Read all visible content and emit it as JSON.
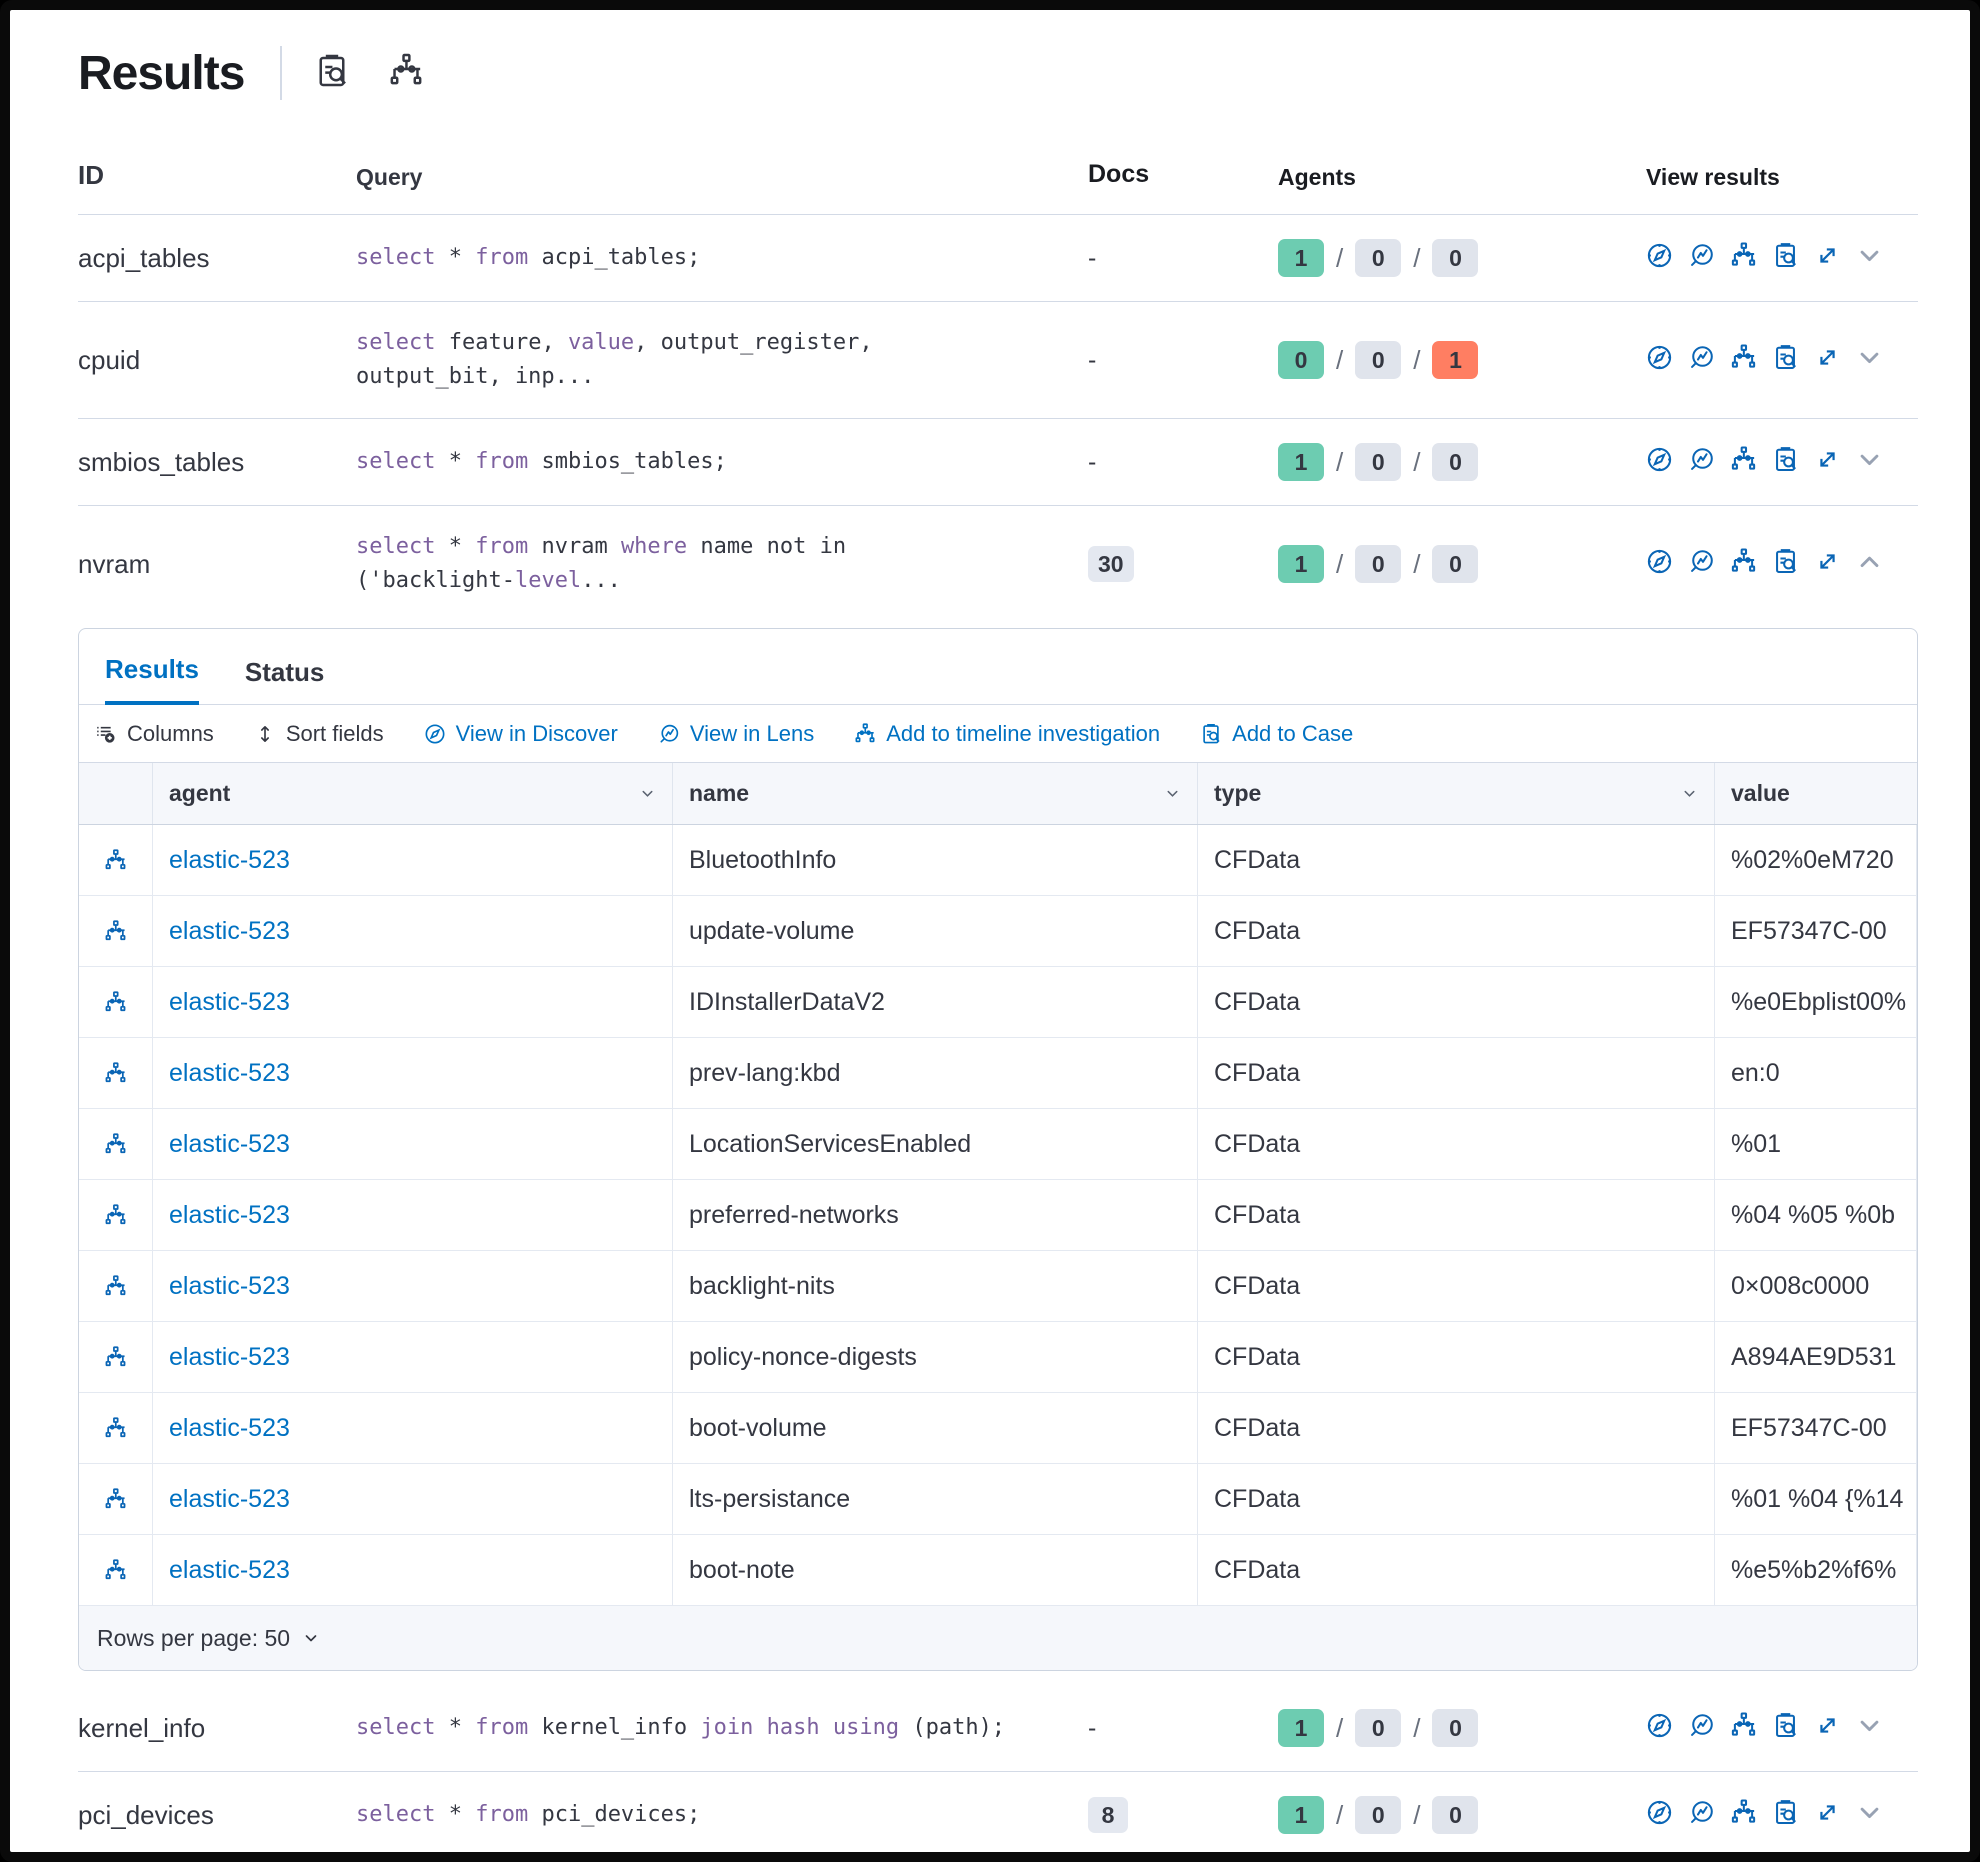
{
  "page": {
    "title": "Results"
  },
  "colors": {
    "link_blue": "#0071c2",
    "icon_blue": "#0a65b5",
    "keyword_purple": "#7c609e",
    "badge_green": "#6dccb1",
    "badge_gray": "#e0e4ec",
    "badge_red": "#ff7e62",
    "text": "#343741"
  },
  "results_table": {
    "headers": {
      "id": "ID",
      "query": "Query",
      "docs": "Docs",
      "agents": "Agents",
      "view_results": "View results"
    },
    "rows": [
      {
        "id": "acpi_tables",
        "query": [
          [
            {
              "t": "select",
              "k": 1
            },
            {
              "t": " * "
            },
            {
              "t": "from",
              "k": 1
            },
            {
              "t": " acpi_tables;"
            }
          ]
        ],
        "docs": "-",
        "docs_is_badge": false,
        "agents": [
          "1",
          "0",
          "0"
        ],
        "third_alert": false,
        "expanded": false
      },
      {
        "id": "cpuid",
        "query": [
          [
            {
              "t": "select",
              "k": 1
            },
            {
              "t": " feature, "
            },
            {
              "t": "value",
              "k": 1
            },
            {
              "t": ", output_register,"
            }
          ],
          [
            {
              "t": "output_bit, inp..."
            }
          ]
        ],
        "docs": "-",
        "docs_is_badge": false,
        "agents": [
          "0",
          "0",
          "1"
        ],
        "third_alert": true,
        "expanded": false
      },
      {
        "id": "smbios_tables",
        "query": [
          [
            {
              "t": "select",
              "k": 1
            },
            {
              "t": " * "
            },
            {
              "t": "from",
              "k": 1
            },
            {
              "t": " smbios_tables;"
            }
          ]
        ],
        "docs": "-",
        "docs_is_badge": false,
        "agents": [
          "1",
          "0",
          "0"
        ],
        "third_alert": false,
        "expanded": false
      },
      {
        "id": "nvram",
        "query": [
          [
            {
              "t": "select",
              "k": 1
            },
            {
              "t": " * "
            },
            {
              "t": "from",
              "k": 1
            },
            {
              "t": " nvram "
            },
            {
              "t": "where",
              "k": 1
            },
            {
              "t": " name not in"
            }
          ],
          [
            {
              "t": "('backlight-"
            },
            {
              "t": "level",
              "k": 1
            },
            {
              "t": "..."
            }
          ]
        ],
        "docs": "30",
        "docs_is_badge": true,
        "agents": [
          "1",
          "0",
          "0"
        ],
        "third_alert": false,
        "expanded": true
      }
    ],
    "rows_after": [
      {
        "id": "kernel_info",
        "query": [
          [
            {
              "t": "select",
              "k": 1
            },
            {
              "t": " * "
            },
            {
              "t": "from",
              "k": 1
            },
            {
              "t": " kernel_info "
            },
            {
              "t": "join hash using",
              "k": 1
            },
            {
              "t": " (path);"
            }
          ]
        ],
        "docs": "-",
        "docs_is_badge": false,
        "agents": [
          "1",
          "0",
          "0"
        ],
        "third_alert": false,
        "expanded": false
      },
      {
        "id": "pci_devices",
        "query": [
          [
            {
              "t": "select",
              "k": 1
            },
            {
              "t": " * "
            },
            {
              "t": "from",
              "k": 1
            },
            {
              "t": " pci_devices;"
            }
          ]
        ],
        "docs": "8",
        "docs_is_badge": true,
        "agents": [
          "1",
          "0",
          "0"
        ],
        "third_alert": false,
        "expanded": false
      }
    ]
  },
  "panel": {
    "tabs": [
      {
        "label": "Results",
        "active": true
      },
      {
        "label": "Status",
        "active": false
      }
    ],
    "toolbar": [
      {
        "label": "Columns"
      },
      {
        "label": "Sort fields"
      },
      {
        "label": "View in Discover"
      },
      {
        "label": "View in Lens"
      },
      {
        "label": "Add to timeline investigation"
      },
      {
        "label": "Add to Case"
      }
    ],
    "grid": {
      "columns": [
        "agent",
        "name",
        "type",
        "value"
      ],
      "rows": [
        {
          "agent": "elastic-523",
          "name": "BluetoothInfo",
          "type": "CFData",
          "value": "%02%0eM720"
        },
        {
          "agent": "elastic-523",
          "name": "update-volume",
          "type": "CFData",
          "value": "EF57347C-00"
        },
        {
          "agent": "elastic-523",
          "name": "IDInstallerDataV2",
          "type": "CFData",
          "value": "%e0Ebplist00%"
        },
        {
          "agent": "elastic-523",
          "name": "prev-lang:kbd",
          "type": "CFData",
          "value": "en:0"
        },
        {
          "agent": "elastic-523",
          "name": "LocationServicesEnabled",
          "type": "CFData",
          "value": "%01"
        },
        {
          "agent": "elastic-523",
          "name": "preferred-networks",
          "type": "CFData",
          "value": "%04 %05 %0b"
        },
        {
          "agent": "elastic-523",
          "name": "backlight-nits",
          "type": "CFData",
          "value": "0×008c0000"
        },
        {
          "agent": "elastic-523",
          "name": "policy-nonce-digests",
          "type": "CFData",
          "value": "A894AE9D531"
        },
        {
          "agent": "elastic-523",
          "name": "boot-volume",
          "type": "CFData",
          "value": "EF57347C-00"
        },
        {
          "agent": "elastic-523",
          "name": "lts-persistance",
          "type": "CFData",
          "value": "%01 %04 {%14"
        },
        {
          "agent": "elastic-523",
          "name": "boot-note",
          "type": "CFData",
          "value": "%e5%b2%f6%"
        }
      ],
      "rows_per_page_label": "Rows per page: ",
      "rows_per_page_value": "50"
    }
  }
}
